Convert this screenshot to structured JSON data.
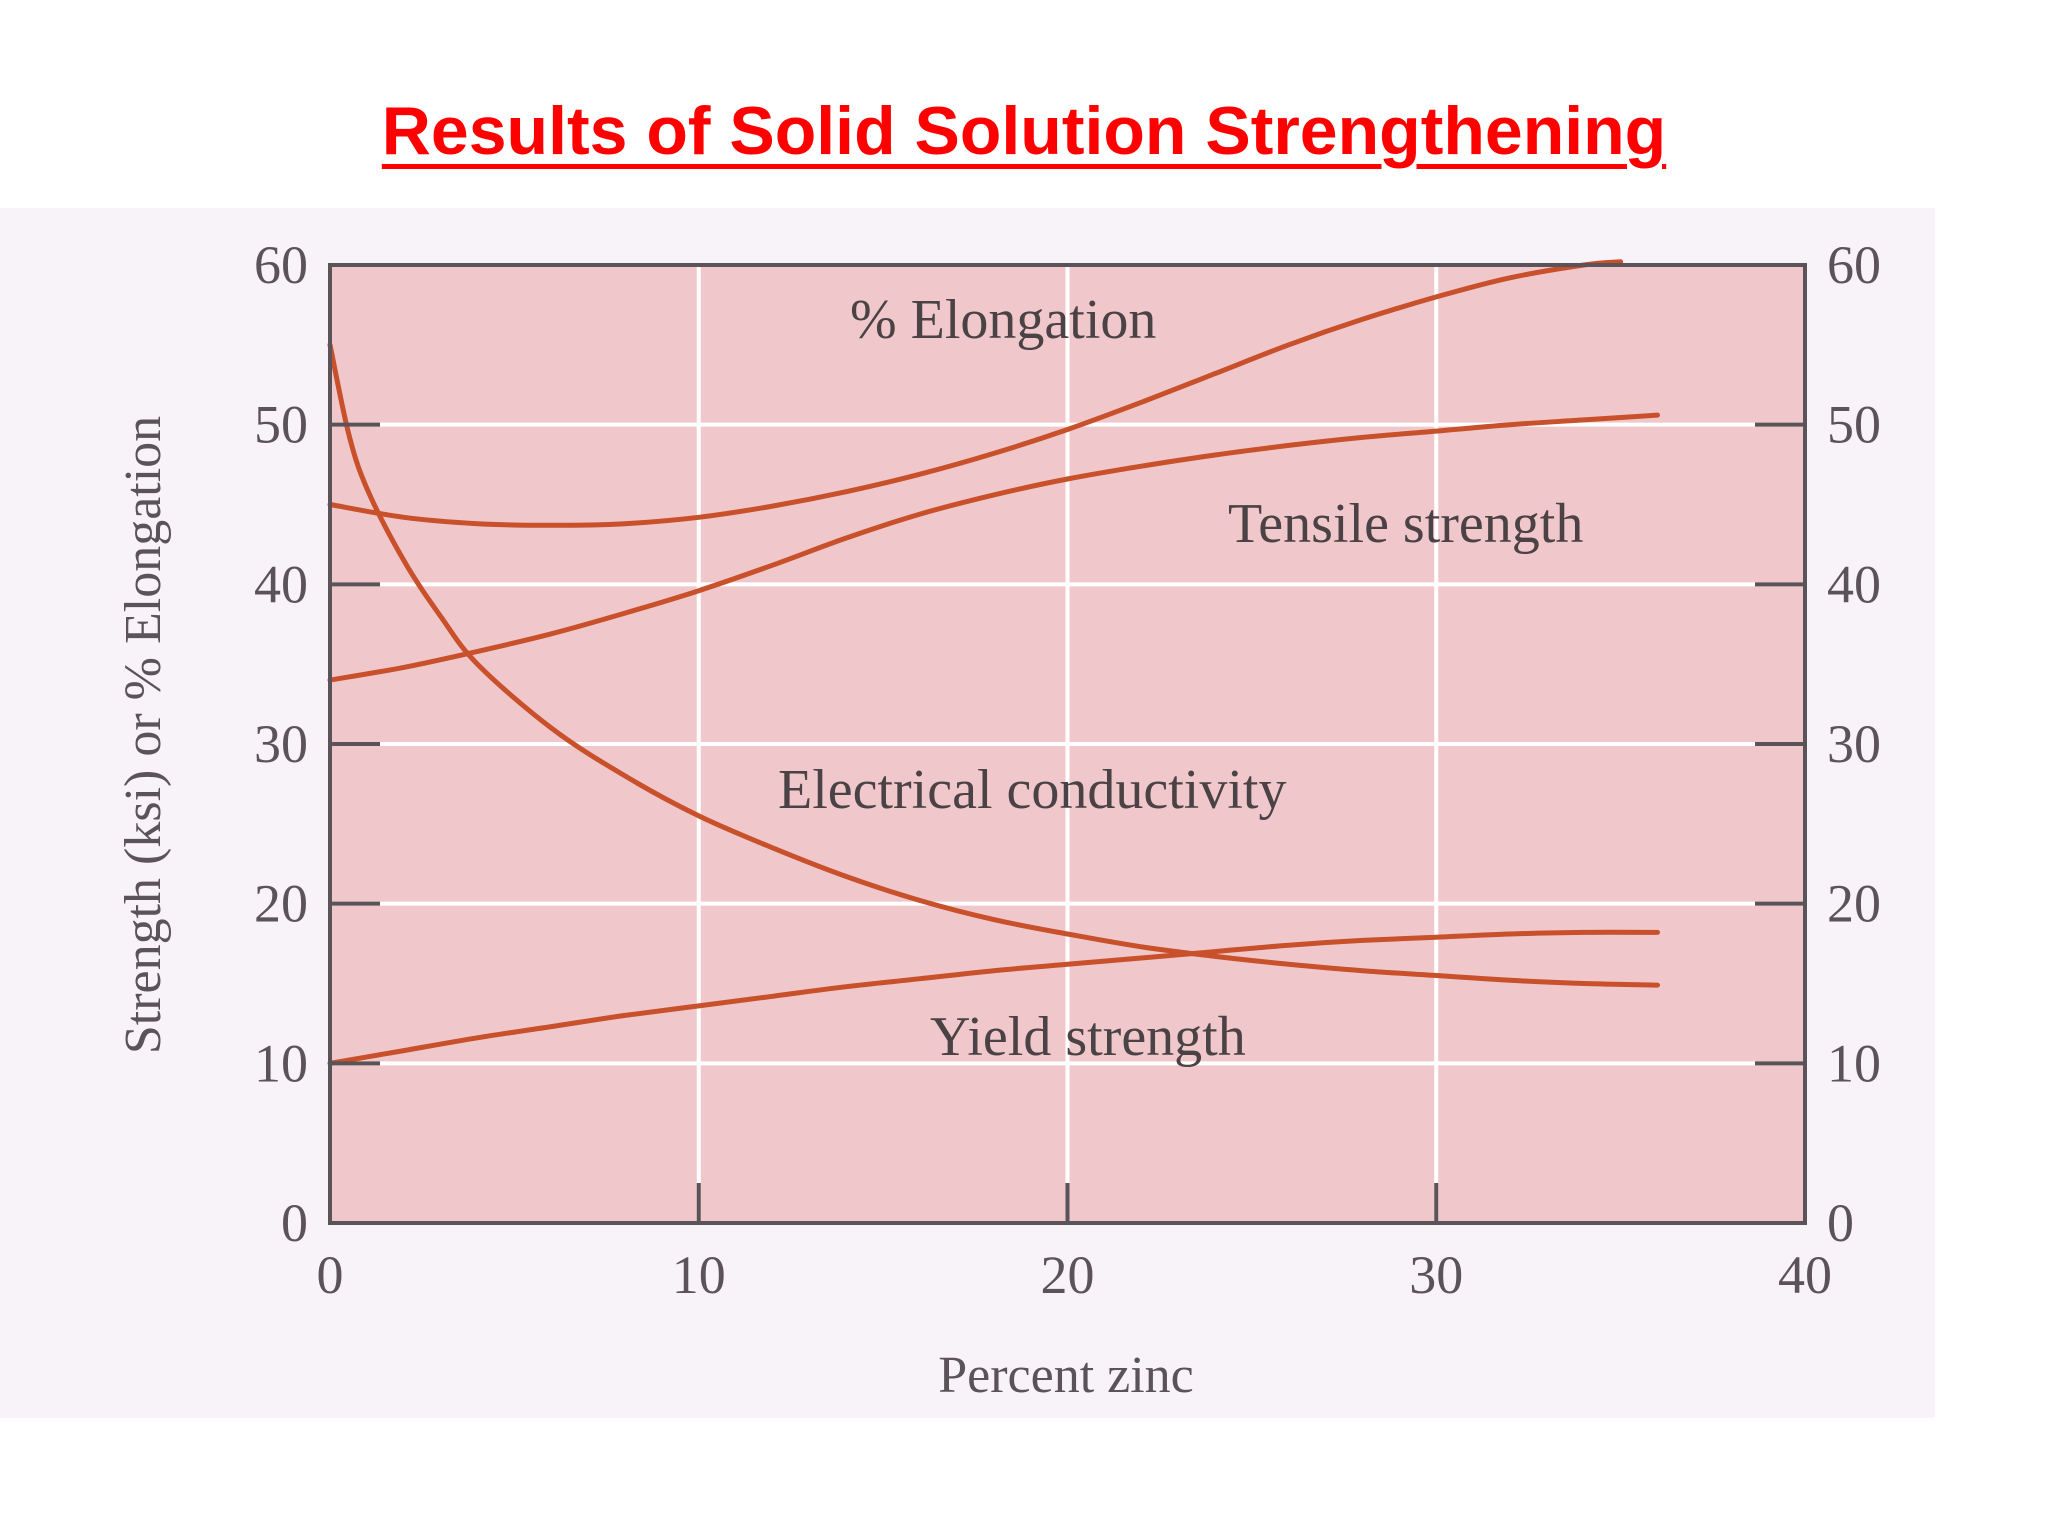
{
  "slide": {
    "title": "Results of Solid Solution Strengthening"
  },
  "chart_data": {
    "type": "line",
    "title": "",
    "xlabel": "Percent zinc",
    "ylabel": "Strength (ksi) or % Elongation",
    "xlim": [
      0,
      40
    ],
    "ylim": [
      0,
      60
    ],
    "x_ticks": [
      "0",
      "10",
      "20",
      "30",
      "40"
    ],
    "y_ticks": [
      "0",
      "10",
      "20",
      "30",
      "40",
      "50",
      "60"
    ],
    "y_ticks_right": [
      "0",
      "10",
      "20",
      "30",
      "40",
      "50",
      "60"
    ],
    "grid": true,
    "legend": "none",
    "colors": {
      "plot_background": "#f0c8cc",
      "grid": "#ffffff",
      "curve": "#c8502a",
      "axis": "#5a5458"
    },
    "series": [
      {
        "name": "% Elongation",
        "x": [
          0,
          2,
          4,
          6,
          8,
          10,
          12,
          14,
          16,
          18,
          20,
          22,
          24,
          26,
          28,
          30,
          32,
          34,
          35
        ],
        "values": [
          45,
          44.2,
          43.8,
          43.7,
          43.8,
          44.2,
          44.9,
          45.8,
          46.9,
          48.2,
          49.7,
          51.4,
          53.2,
          55,
          56.6,
          58,
          59.2,
          60,
          60.2
        ]
      },
      {
        "name": "Tensile strength",
        "x": [
          0,
          2,
          4,
          6,
          8,
          10,
          12,
          14,
          16,
          18,
          20,
          22,
          24,
          26,
          28,
          30,
          32,
          34,
          36
        ],
        "values": [
          34,
          34.8,
          35.8,
          36.9,
          38.2,
          39.6,
          41.2,
          42.9,
          44.4,
          45.6,
          46.6,
          47.4,
          48.1,
          48.7,
          49.2,
          49.6,
          50,
          50.3,
          50.6
        ]
      },
      {
        "name": "Electrical conductivity",
        "x": [
          0,
          0.5,
          1,
          2,
          3,
          4,
          6,
          8,
          10,
          12,
          14,
          16,
          18,
          20,
          22,
          24,
          26,
          28,
          30,
          32,
          34,
          36
        ],
        "values": [
          55,
          49.5,
          46,
          41.5,
          38,
          35,
          31,
          28,
          25.5,
          23.5,
          21.7,
          20.2,
          19,
          18.1,
          17.3,
          16.7,
          16.2,
          15.8,
          15.5,
          15.2,
          15,
          14.9
        ]
      },
      {
        "name": "Yield strength",
        "x": [
          0,
          2,
          4,
          6,
          8,
          10,
          12,
          14,
          16,
          18,
          20,
          22,
          24,
          26,
          28,
          30,
          32,
          34,
          36
        ],
        "values": [
          10,
          10.8,
          11.6,
          12.3,
          13,
          13.6,
          14.2,
          14.8,
          15.3,
          15.8,
          16.2,
          16.6,
          17,
          17.4,
          17.7,
          17.9,
          18.1,
          18.2,
          18.2
        ]
      }
    ],
    "annotations": [
      "% Elongation",
      "Tensile strength",
      "Electrical conductivity",
      "Yield strength"
    ]
  }
}
